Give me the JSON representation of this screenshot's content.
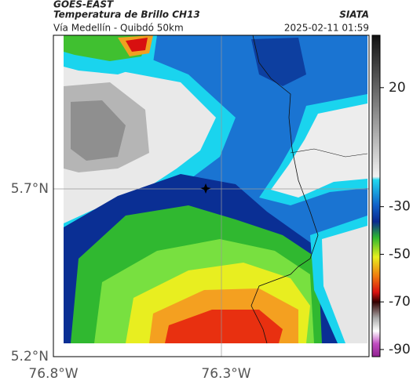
{
  "header": {
    "title": "GOES-EAST",
    "subtitle": "Temperatura de Brillo CH13",
    "route": "Vía Medellín - Quibdó 50km",
    "source": "SIATA",
    "timestamp": "2025-02-11 01:59"
  },
  "map": {
    "lat_labels": [
      "5.7°N",
      "5.2°N"
    ],
    "lon_labels": [
      "76.8°W",
      "76.3°W"
    ]
  },
  "colorbar": {
    "vlim": [
      -93,
      42
    ],
    "ticks": [
      20,
      -30,
      -50,
      -70,
      -90
    ]
  }
}
